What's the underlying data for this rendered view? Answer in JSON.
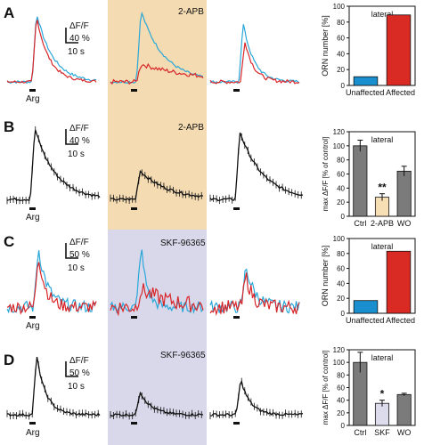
{
  "colors": {
    "apb_bg": "#f4dbb2",
    "skf_bg": "#d8d8ea",
    "blue_trace": "#2aa7d8",
    "red_trace": "#d8262a",
    "blue_bar": "#1a8fd0",
    "red_bar": "#d92a24",
    "gray_bar": "#7b7b7b",
    "apb_bar": "#f7dfb5",
    "skf_bar": "#dcdcec"
  },
  "rows": [
    {
      "letter": "A",
      "scale_top": "ΔF/F",
      "scale_mid": "40 %",
      "scale_bottom": "10 s",
      "stimulus_label": "Arg",
      "drug_label": "2-APB"
    },
    {
      "letter": "B",
      "scale_top": "ΔF/F",
      "scale_mid": "40 %",
      "scale_bottom": "10 s",
      "stimulus_label": "Arg",
      "drug_label": "2-APB"
    },
    {
      "letter": "C",
      "scale_top": "ΔF/F",
      "scale_mid": "50 %",
      "scale_bottom": "10 s",
      "stimulus_label": "Arg",
      "drug_label": "SKF-96365"
    },
    {
      "letter": "D",
      "scale_top": "ΔF/F",
      "scale_mid": "50 %",
      "scale_bottom": "10 s",
      "stimulus_label": "Arg",
      "drug_label": "SKF-96365"
    }
  ],
  "chart_data": [
    {
      "type": "bar",
      "panel": "A",
      "title": "lateral",
      "ylabel": "ORN number [%]",
      "ylim": [
        0,
        100
      ],
      "yticks": [
        0,
        20,
        40,
        60,
        80,
        100
      ],
      "categories": [
        "Unaffected",
        "Affected"
      ],
      "values": [
        11,
        89
      ],
      "colors": [
        "#1a8fd0",
        "#d92a24"
      ],
      "grid": false
    },
    {
      "type": "bar",
      "panel": "B",
      "title": "lateral",
      "ylabel": "max ΔF/F [% of control]",
      "ylim": [
        0,
        120
      ],
      "yticks": [
        0,
        20,
        40,
        60,
        80,
        100,
        120
      ],
      "categories": [
        "Ctrl",
        "2-APB",
        "WO"
      ],
      "values": [
        100,
        27,
        64
      ],
      "errors": [
        8,
        5,
        7
      ],
      "significance": [
        "",
        "**",
        ""
      ],
      "colors": [
        "#7b7b7b",
        "#f7dfb5",
        "#7b7b7b"
      ],
      "grid": false
    },
    {
      "type": "bar",
      "panel": "C",
      "title": "lateral",
      "ylabel": "ORN number [%]",
      "ylim": [
        0,
        100
      ],
      "yticks": [
        0,
        20,
        40,
        60,
        80,
        100
      ],
      "categories": [
        "Unaffected",
        "Affected"
      ],
      "values": [
        17,
        83
      ],
      "colors": [
        "#1a8fd0",
        "#d92a24"
      ],
      "grid": false
    },
    {
      "type": "bar",
      "panel": "D",
      "title": "lateral",
      "ylabel": "max ΔF/F [% of control]",
      "ylim": [
        0,
        120
      ],
      "yticks": [
        0,
        20,
        40,
        60,
        80,
        100,
        120
      ],
      "categories": [
        "Ctrl",
        "SKF",
        "WO"
      ],
      "values": [
        100,
        35,
        49
      ],
      "errors": [
        16,
        5,
        2
      ],
      "significance": [
        "",
        "*",
        ""
      ],
      "colors": [
        "#7b7b7b",
        "#dcdcec",
        "#7b7b7b"
      ],
      "grid": false
    }
  ]
}
